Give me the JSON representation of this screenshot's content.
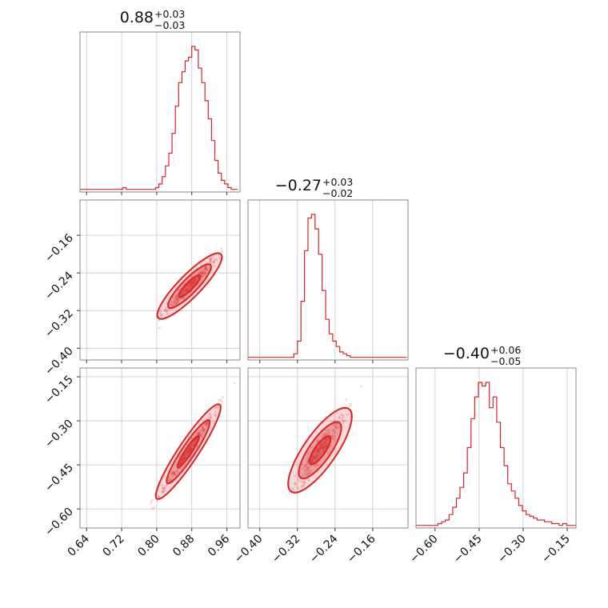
{
  "chart_data": {
    "type": "corner",
    "color": "#d62728",
    "grid": true,
    "parameters": [
      {
        "title_value": "0.88",
        "title_plus": "+0.03",
        "title_minus": "−0.03",
        "range": [
          0.625,
          0.99
        ],
        "ticks": [
          0.64,
          0.72,
          0.8,
          0.88,
          0.96
        ],
        "tick_labels": [
          "0.64",
          "0.72",
          "0.80",
          "0.88",
          "0.96"
        ],
        "hist_bins": [
          0.625,
          0.6325,
          0.64,
          0.6475,
          0.655,
          0.6625,
          0.67,
          0.6775,
          0.685,
          0.6925,
          0.7,
          0.7075,
          0.715,
          0.7225,
          0.73,
          0.7375,
          0.745,
          0.7525,
          0.76,
          0.7675,
          0.775,
          0.7825,
          0.79,
          0.7975,
          0.805,
          0.8125,
          0.82,
          0.8275,
          0.835,
          0.8425,
          0.85,
          0.8575,
          0.865,
          0.8725,
          0.88,
          0.8875,
          0.895,
          0.9025,
          0.91,
          0.9175,
          0.925,
          0.9325,
          0.94,
          0.9475,
          0.955,
          0.9625,
          0.97,
          0.9775,
          0.985
        ],
        "hist_counts": [
          1,
          1,
          1,
          1,
          1,
          1,
          1,
          1,
          1,
          1,
          1,
          1,
          1,
          2,
          1,
          1,
          1,
          1,
          1,
          1,
          1,
          1,
          1,
          2,
          4,
          8,
          14,
          21,
          32,
          47,
          60,
          66,
          72,
          74,
          80,
          78,
          68,
          60,
          50,
          40,
          28,
          17,
          10,
          6,
          4,
          2,
          1,
          1
        ]
      },
      {
        "title_value": "−0.27",
        "title_plus": "+0.03",
        "title_minus": "−0.02",
        "range": [
          -0.425,
          -0.085
        ],
        "ticks": [
          -0.4,
          -0.32,
          -0.24,
          -0.16
        ],
        "tick_labels": [
          "−0.40",
          "−0.32",
          "−0.24",
          "−0.16"
        ],
        "hist_bins": [
          -0.425,
          -0.4175,
          -0.41,
          -0.4025,
          -0.395,
          -0.3875,
          -0.38,
          -0.3725,
          -0.365,
          -0.3575,
          -0.35,
          -0.3425,
          -0.335,
          -0.3275,
          -0.32,
          -0.3125,
          -0.305,
          -0.2975,
          -0.29,
          -0.2825,
          -0.275,
          -0.2675,
          -0.26,
          -0.2525,
          -0.245,
          -0.2375,
          -0.23,
          -0.2225,
          -0.215,
          -0.2075,
          -0.2,
          -0.1925,
          -0.185,
          -0.1775,
          -0.17,
          -0.1625,
          -0.155,
          -0.1475,
          -0.14,
          -0.1325,
          -0.125,
          -0.1175,
          -0.11,
          -0.1025,
          -0.095,
          -0.0875
        ],
        "hist_counts": [
          1,
          1,
          1,
          1,
          1,
          1,
          1,
          1,
          1,
          1,
          1,
          1,
          1,
          3,
          10,
          32,
          60,
          78,
          80,
          72,
          58,
          38,
          22,
          14,
          10,
          7,
          4,
          3,
          2,
          1,
          1,
          1,
          1,
          1,
          1,
          1,
          1,
          1,
          1,
          1,
          1,
          1,
          1,
          1,
          1
        ]
      },
      {
        "title_value": "−0.40",
        "title_plus": "+0.06",
        "title_minus": "−0.05",
        "range": [
          -0.665,
          -0.12
        ],
        "ticks": [
          -0.6,
          -0.45,
          -0.3,
          -0.15
        ],
        "tick_labels": [
          "−0.60",
          "−0.45",
          "−0.30",
          "−0.15"
        ],
        "hist_bins": [
          -0.665,
          -0.6525,
          -0.64,
          -0.6275,
          -0.615,
          -0.6025,
          -0.59,
          -0.5775,
          -0.565,
          -0.5525,
          -0.54,
          -0.5275,
          -0.515,
          -0.5025,
          -0.49,
          -0.4775,
          -0.465,
          -0.4525,
          -0.44,
          -0.4275,
          -0.415,
          -0.4025,
          -0.39,
          -0.3775,
          -0.365,
          -0.3525,
          -0.34,
          -0.3275,
          -0.315,
          -0.3025,
          -0.29,
          -0.2775,
          -0.265,
          -0.2525,
          -0.24,
          -0.2275,
          -0.215,
          -0.2025,
          -0.19,
          -0.1775,
          -0.165,
          -0.1525,
          -0.14,
          -0.1275,
          -0.12
        ],
        "hist_counts": [
          1,
          1,
          1,
          1,
          1,
          1,
          2,
          3,
          4,
          7,
          11,
          16,
          22,
          30,
          44,
          60,
          72,
          80,
          78,
          80,
          66,
          72,
          58,
          44,
          34,
          24,
          20,
          16,
          12,
          9,
          7,
          6,
          5,
          4,
          4,
          3,
          3,
          2,
          2,
          1,
          2,
          1,
          1,
          1
        ]
      }
    ],
    "pairs": [
      {
        "x_param": 0,
        "y_param": 1,
        "slope": 0.95,
        "x_center": 0.875,
        "y_center": -0.268,
        "sx": 0.028,
        "s_perp": 0.0045,
        "n_points": 260,
        "x_clip": [
          0.78,
          0.99
        ],
        "contour_levels": [
          1.0,
          2.0,
          3.0
        ]
      },
      {
        "x_param": 0,
        "y_param": 2,
        "slope": 2.25,
        "x_center": 0.872,
        "y_center": -0.405,
        "sx": 0.028,
        "s_perp": 0.006,
        "n_points": 260,
        "x_clip": [
          0.76,
          0.99
        ],
        "contour_levels": [
          1.0,
          2.0,
          3.0
        ]
      },
      {
        "x_param": 1,
        "y_param": 2,
        "slope": 2.3,
        "x_center": -0.272,
        "y_center": -0.4,
        "sx": 0.024,
        "s_perp": 0.012,
        "n_points": 260,
        "x_clip": [
          -0.35,
          -0.18
        ],
        "contour_levels": [
          1.0,
          2.0,
          3.0
        ]
      }
    ]
  }
}
